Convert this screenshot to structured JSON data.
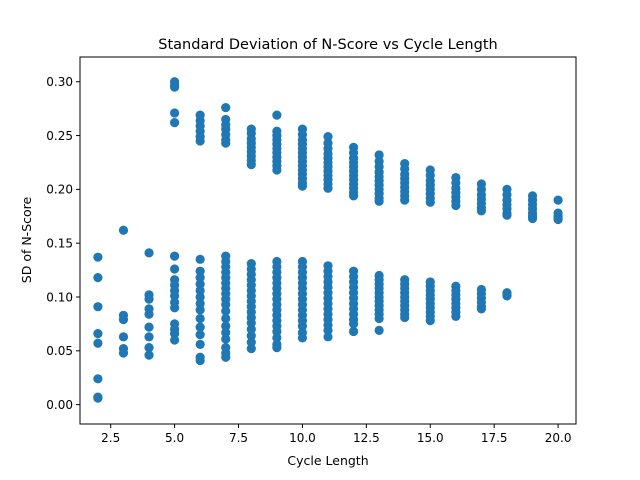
{
  "chart_data": {
    "type": "scatter",
    "title": "Standard Deviation of N-Score vs Cycle Length",
    "xlabel": "Cycle Length",
    "ylabel": "SD of N-Score",
    "xlim": [
      1.3,
      20.7
    ],
    "ylim": [
      -0.018,
      0.323
    ],
    "xticks": [
      2.5,
      5.0,
      7.5,
      10.0,
      12.5,
      15.0,
      17.5,
      20.0
    ],
    "xtick_labels": [
      "2.5",
      "5.0",
      "7.5",
      "10.0",
      "12.5",
      "15.0",
      "17.5",
      "20.0"
    ],
    "yticks": [
      0.0,
      0.05,
      0.1,
      0.15,
      0.2,
      0.25,
      0.3
    ],
    "ytick_labels": [
      "0.00",
      "0.05",
      "0.10",
      "0.15",
      "0.20",
      "0.25",
      "0.30"
    ],
    "grid": false,
    "marker_color": "#1f77b4",
    "series": [
      {
        "points": [
          [
            2,
            0.137
          ],
          [
            2,
            0.118
          ],
          [
            2,
            0.091
          ],
          [
            2,
            0.066
          ],
          [
            2,
            0.057
          ],
          [
            2,
            0.024
          ],
          [
            2,
            0.007
          ],
          [
            2,
            0.006
          ],
          [
            3,
            0.162
          ],
          [
            3,
            0.083
          ],
          [
            3,
            0.079
          ],
          [
            3,
            0.063
          ],
          [
            3,
            0.052
          ],
          [
            3,
            0.048
          ],
          [
            4,
            0.141
          ],
          [
            4,
            0.102
          ],
          [
            4,
            0.098
          ],
          [
            4,
            0.089
          ],
          [
            4,
            0.084
          ],
          [
            4,
            0.072
          ],
          [
            4,
            0.063
          ],
          [
            4,
            0.053
          ],
          [
            4,
            0.046
          ],
          [
            5,
            0.3
          ],
          [
            5,
            0.297
          ],
          [
            5,
            0.295
          ],
          [
            5,
            0.271
          ],
          [
            5,
            0.262
          ],
          [
            5,
            0.138
          ],
          [
            5,
            0.126
          ],
          [
            5,
            0.116
          ],
          [
            5,
            0.111
          ],
          [
            5,
            0.106
          ],
          [
            5,
            0.101
          ],
          [
            5,
            0.095
          ],
          [
            5,
            0.09
          ],
          [
            5,
            0.075
          ],
          [
            5,
            0.07
          ],
          [
            5,
            0.066
          ],
          [
            5,
            0.06
          ],
          [
            6,
            0.269
          ],
          [
            6,
            0.264
          ],
          [
            6,
            0.259
          ],
          [
            6,
            0.254
          ],
          [
            6,
            0.249
          ],
          [
            6,
            0.245
          ],
          [
            6,
            0.135
          ],
          [
            6,
            0.124
          ],
          [
            6,
            0.118
          ],
          [
            6,
            0.112
          ],
          [
            6,
            0.106
          ],
          [
            6,
            0.1
          ],
          [
            6,
            0.094
          ],
          [
            6,
            0.088
          ],
          [
            6,
            0.08
          ],
          [
            6,
            0.072
          ],
          [
            6,
            0.065
          ],
          [
            6,
            0.056
          ],
          [
            6,
            0.044
          ],
          [
            6,
            0.041
          ],
          [
            7,
            0.276
          ],
          [
            7,
            0.265
          ],
          [
            7,
            0.26
          ],
          [
            7,
            0.256
          ],
          [
            7,
            0.251
          ],
          [
            7,
            0.246
          ],
          [
            7,
            0.243
          ],
          [
            7,
            0.138
          ],
          [
            7,
            0.133
          ],
          [
            7,
            0.128
          ],
          [
            7,
            0.123
          ],
          [
            7,
            0.118
          ],
          [
            7,
            0.113
          ],
          [
            7,
            0.108
          ],
          [
            7,
            0.103
          ],
          [
            7,
            0.098
          ],
          [
            7,
            0.093
          ],
          [
            7,
            0.087
          ],
          [
            7,
            0.08
          ],
          [
            7,
            0.073
          ],
          [
            7,
            0.067
          ],
          [
            7,
            0.061
          ],
          [
            7,
            0.053
          ],
          [
            7,
            0.048
          ],
          [
            7,
            0.044
          ],
          [
            8,
            0.256
          ],
          [
            8,
            0.252
          ],
          [
            8,
            0.247
          ],
          [
            8,
            0.243
          ],
          [
            8,
            0.239
          ],
          [
            8,
            0.235
          ],
          [
            8,
            0.231
          ],
          [
            8,
            0.227
          ],
          [
            8,
            0.223
          ],
          [
            8,
            0.131
          ],
          [
            8,
            0.126
          ],
          [
            8,
            0.121
          ],
          [
            8,
            0.116
          ],
          [
            8,
            0.111
          ],
          [
            8,
            0.106
          ],
          [
            8,
            0.101
          ],
          [
            8,
            0.096
          ],
          [
            8,
            0.091
          ],
          [
            8,
            0.086
          ],
          [
            8,
            0.081
          ],
          [
            8,
            0.076
          ],
          [
            8,
            0.07
          ],
          [
            8,
            0.064
          ],
          [
            8,
            0.058
          ],
          [
            8,
            0.052
          ],
          [
            9,
            0.269
          ],
          [
            9,
            0.254
          ],
          [
            9,
            0.25
          ],
          [
            9,
            0.246
          ],
          [
            9,
            0.242
          ],
          [
            9,
            0.238
          ],
          [
            9,
            0.234
          ],
          [
            9,
            0.23
          ],
          [
            9,
            0.226
          ],
          [
            9,
            0.222
          ],
          [
            9,
            0.218
          ],
          [
            9,
            0.133
          ],
          [
            9,
            0.128
          ],
          [
            9,
            0.123
          ],
          [
            9,
            0.118
          ],
          [
            9,
            0.113
          ],
          [
            9,
            0.108
          ],
          [
            9,
            0.103
          ],
          [
            9,
            0.098
          ],
          [
            9,
            0.093
          ],
          [
            9,
            0.088
          ],
          [
            9,
            0.083
          ],
          [
            9,
            0.078
          ],
          [
            9,
            0.073
          ],
          [
            9,
            0.068
          ],
          [
            9,
            0.062
          ],
          [
            9,
            0.056
          ],
          [
            9,
            0.053
          ],
          [
            10,
            0.256
          ],
          [
            10,
            0.251
          ],
          [
            10,
            0.246
          ],
          [
            10,
            0.242
          ],
          [
            10,
            0.238
          ],
          [
            10,
            0.234
          ],
          [
            10,
            0.23
          ],
          [
            10,
            0.226
          ],
          [
            10,
            0.222
          ],
          [
            10,
            0.218
          ],
          [
            10,
            0.214
          ],
          [
            10,
            0.21
          ],
          [
            10,
            0.206
          ],
          [
            10,
            0.203
          ],
          [
            10,
            0.133
          ],
          [
            10,
            0.128
          ],
          [
            10,
            0.123
          ],
          [
            10,
            0.118
          ],
          [
            10,
            0.113
          ],
          [
            10,
            0.108
          ],
          [
            10,
            0.103
          ],
          [
            10,
            0.098
          ],
          [
            10,
            0.093
          ],
          [
            10,
            0.088
          ],
          [
            10,
            0.083
          ],
          [
            10,
            0.078
          ],
          [
            10,
            0.073
          ],
          [
            10,
            0.067
          ],
          [
            10,
            0.062
          ],
          [
            11,
            0.249
          ],
          [
            11,
            0.243
          ],
          [
            11,
            0.238
          ],
          [
            11,
            0.233
          ],
          [
            11,
            0.229
          ],
          [
            11,
            0.225
          ],
          [
            11,
            0.221
          ],
          [
            11,
            0.217
          ],
          [
            11,
            0.213
          ],
          [
            11,
            0.209
          ],
          [
            11,
            0.205
          ],
          [
            11,
            0.201
          ],
          [
            11,
            0.129
          ],
          [
            11,
            0.124
          ],
          [
            11,
            0.119
          ],
          [
            11,
            0.114
          ],
          [
            11,
            0.109
          ],
          [
            11,
            0.104
          ],
          [
            11,
            0.099
          ],
          [
            11,
            0.094
          ],
          [
            11,
            0.089
          ],
          [
            11,
            0.084
          ],
          [
            11,
            0.079
          ],
          [
            11,
            0.074
          ],
          [
            11,
            0.069
          ],
          [
            11,
            0.063
          ],
          [
            12,
            0.239
          ],
          [
            12,
            0.234
          ],
          [
            12,
            0.229
          ],
          [
            12,
            0.225
          ],
          [
            12,
            0.221
          ],
          [
            12,
            0.217
          ],
          [
            12,
            0.213
          ],
          [
            12,
            0.209
          ],
          [
            12,
            0.205
          ],
          [
            12,
            0.201
          ],
          [
            12,
            0.197
          ],
          [
            12,
            0.194
          ],
          [
            12,
            0.124
          ],
          [
            12,
            0.119
          ],
          [
            12,
            0.114
          ],
          [
            12,
            0.109
          ],
          [
            12,
            0.104
          ],
          [
            12,
            0.099
          ],
          [
            12,
            0.094
          ],
          [
            12,
            0.089
          ],
          [
            12,
            0.084
          ],
          [
            12,
            0.079
          ],
          [
            12,
            0.075
          ],
          [
            12,
            0.068
          ],
          [
            13,
            0.232
          ],
          [
            13,
            0.226
          ],
          [
            13,
            0.221
          ],
          [
            13,
            0.216
          ],
          [
            13,
            0.212
          ],
          [
            13,
            0.208
          ],
          [
            13,
            0.204
          ],
          [
            13,
            0.2
          ],
          [
            13,
            0.196
          ],
          [
            13,
            0.192
          ],
          [
            13,
            0.189
          ],
          [
            13,
            0.12
          ],
          [
            13,
            0.116
          ],
          [
            13,
            0.112
          ],
          [
            13,
            0.108
          ],
          [
            13,
            0.104
          ],
          [
            13,
            0.1
          ],
          [
            13,
            0.096
          ],
          [
            13,
            0.092
          ],
          [
            13,
            0.088
          ],
          [
            13,
            0.084
          ],
          [
            13,
            0.08
          ],
          [
            13,
            0.069
          ],
          [
            14,
            0.224
          ],
          [
            14,
            0.219
          ],
          [
            14,
            0.214
          ],
          [
            14,
            0.21
          ],
          [
            14,
            0.206
          ],
          [
            14,
            0.202
          ],
          [
            14,
            0.198
          ],
          [
            14,
            0.194
          ],
          [
            14,
            0.19
          ],
          [
            14,
            0.116
          ],
          [
            14,
            0.112
          ],
          [
            14,
            0.108
          ],
          [
            14,
            0.104
          ],
          [
            14,
            0.1
          ],
          [
            14,
            0.096
          ],
          [
            14,
            0.092
          ],
          [
            14,
            0.088
          ],
          [
            14,
            0.084
          ],
          [
            14,
            0.081
          ],
          [
            15,
            0.218
          ],
          [
            15,
            0.213
          ],
          [
            15,
            0.208
          ],
          [
            15,
            0.204
          ],
          [
            15,
            0.2
          ],
          [
            15,
            0.196
          ],
          [
            15,
            0.192
          ],
          [
            15,
            0.188
          ],
          [
            15,
            0.114
          ],
          [
            15,
            0.11
          ],
          [
            15,
            0.106
          ],
          [
            15,
            0.102
          ],
          [
            15,
            0.098
          ],
          [
            15,
            0.094
          ],
          [
            15,
            0.09
          ],
          [
            15,
            0.086
          ],
          [
            15,
            0.082
          ],
          [
            15,
            0.078
          ],
          [
            16,
            0.211
          ],
          [
            16,
            0.206
          ],
          [
            16,
            0.201
          ],
          [
            16,
            0.197
          ],
          [
            16,
            0.193
          ],
          [
            16,
            0.189
          ],
          [
            16,
            0.185
          ],
          [
            16,
            0.11
          ],
          [
            16,
            0.106
          ],
          [
            16,
            0.102
          ],
          [
            16,
            0.098
          ],
          [
            16,
            0.094
          ],
          [
            16,
            0.09
          ],
          [
            16,
            0.086
          ],
          [
            16,
            0.082
          ],
          [
            17,
            0.205
          ],
          [
            17,
            0.2
          ],
          [
            17,
            0.195
          ],
          [
            17,
            0.191
          ],
          [
            17,
            0.187
          ],
          [
            17,
            0.183
          ],
          [
            17,
            0.18
          ],
          [
            17,
            0.107
          ],
          [
            17,
            0.103
          ],
          [
            17,
            0.099
          ],
          [
            17,
            0.095
          ],
          [
            17,
            0.091
          ],
          [
            17,
            0.089
          ],
          [
            18,
            0.2
          ],
          [
            18,
            0.195
          ],
          [
            18,
            0.19
          ],
          [
            18,
            0.186
          ],
          [
            18,
            0.182
          ],
          [
            18,
            0.178
          ],
          [
            18,
            0.176
          ],
          [
            18,
            0.104
          ],
          [
            18,
            0.102
          ],
          [
            18,
            0.101
          ],
          [
            19,
            0.194
          ],
          [
            19,
            0.19
          ],
          [
            19,
            0.186
          ],
          [
            19,
            0.182
          ],
          [
            19,
            0.178
          ],
          [
            19,
            0.175
          ],
          [
            19,
            0.173
          ],
          [
            20,
            0.19
          ],
          [
            20,
            0.178
          ],
          [
            20,
            0.175
          ],
          [
            20,
            0.173
          ],
          [
            20,
            0.172
          ]
        ]
      }
    ]
  }
}
